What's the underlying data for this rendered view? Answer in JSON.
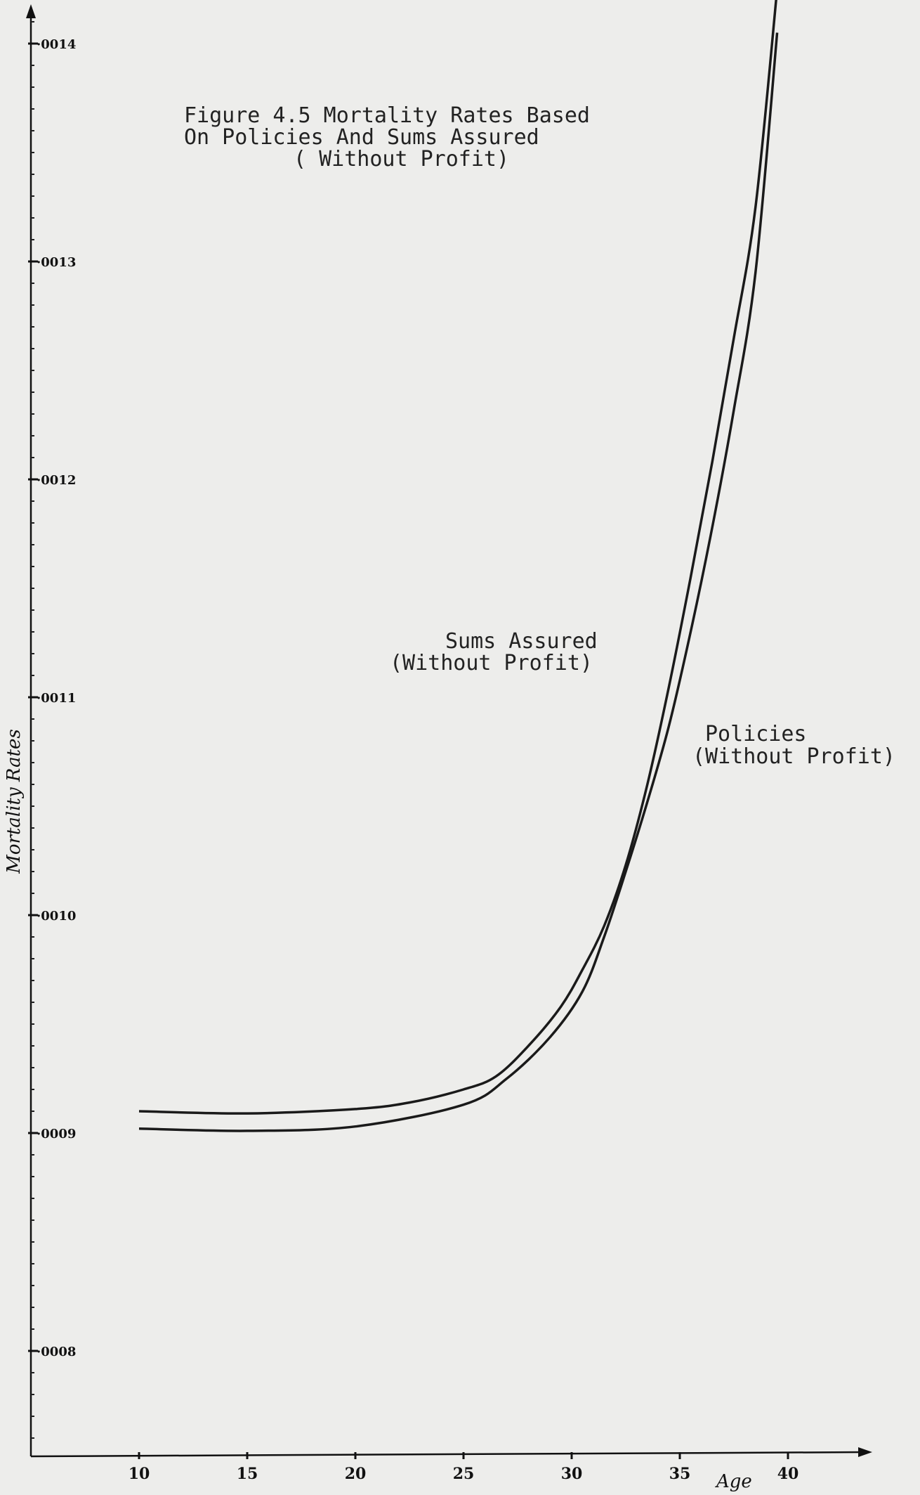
{
  "chart_data": {
    "type": "line",
    "title": [
      "Figure 4.5 Mortality Rates Based",
      "On Policies And Sums Assured",
      "( Without Profit)"
    ],
    "xlabel": "Age",
    "ylabel": "Mortality Rates",
    "xlim": [
      5,
      43
    ],
    "ylim": [
      0.00075,
      0.00142
    ],
    "x_ticks": [
      10,
      15,
      20,
      25,
      30,
      35,
      40
    ],
    "x_tick_labels": [
      "10",
      "15",
      "20",
      "25",
      "30",
      "35",
      "40"
    ],
    "y_ticks": [
      0.0008,
      0.0009,
      0.001,
      0.0011,
      0.0012,
      0.0013,
      0.0014
    ],
    "y_tick_labels": [
      "·0008",
      "·0009",
      "·0010",
      "·0011",
      "·0012",
      "·0013",
      "·0014"
    ],
    "series": [
      {
        "name": [
          "Sums Assured",
          "(Without Profit)"
        ],
        "x": [
          10,
          15,
          20,
          22.5,
          25,
          26.5,
          28,
          29.5,
          30.5,
          31.5,
          32.5,
          33.5,
          34.5,
          35.5,
          36.5,
          37.5,
          38.5,
          39.5
        ],
        "values": [
          0.00091,
          0.000909,
          0.000911,
          0.000914,
          0.00092,
          0.000926,
          0.00094,
          0.000958,
          0.000975,
          0.000995,
          0.001023,
          0.00106,
          0.001105,
          0.001155,
          0.001208,
          0.001265,
          0.001325,
          0.001425
        ]
      },
      {
        "name": [
          "Policies",
          "(Without Profit)"
        ],
        "x": [
          10,
          15,
          20,
          25,
          27,
          29,
          30.5,
          31.5,
          32.5,
          33.5,
          34.5,
          35.5,
          36.5,
          37.5,
          38.5,
          39.5
        ],
        "values": [
          0.000902,
          0.000901,
          0.000903,
          0.000913,
          0.000925,
          0.000944,
          0.000965,
          0.00099,
          0.00102,
          0.001052,
          0.001087,
          0.00113,
          0.001178,
          0.001232,
          0.001295,
          0.001405
        ]
      }
    ],
    "grid": false,
    "legend": "inline labels"
  }
}
